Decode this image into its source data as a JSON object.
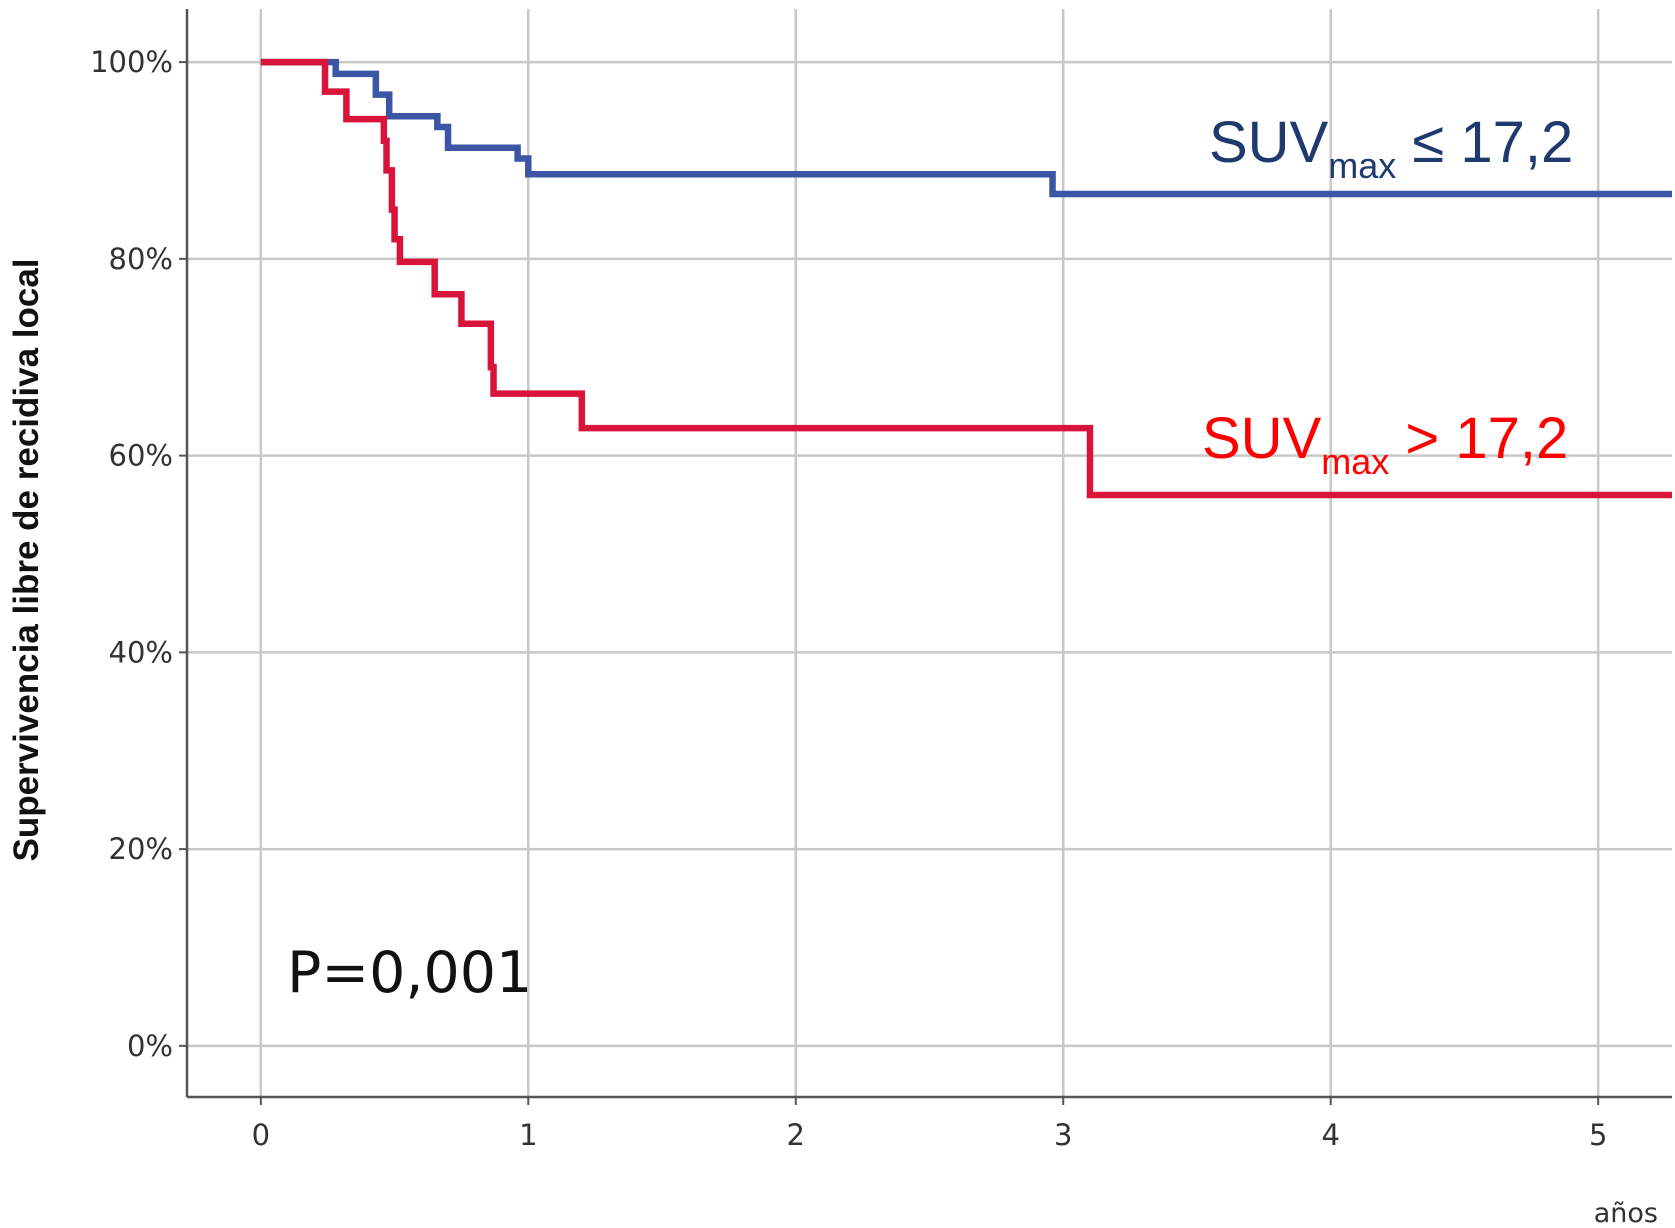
{
  "chart_data": {
    "type": "line",
    "step": "post",
    "ylabel": "Supervivencia libre de recidiva local",
    "xlabel": "años",
    "annotation": "P=0,001",
    "xlim": [
      -0.276,
      5.276
    ],
    "ylim": [
      -5.2,
      105.4
    ],
    "xticks": [
      0,
      1,
      2,
      3,
      4,
      5
    ],
    "yticks": [
      {
        "value": 0,
        "label": "0%"
      },
      {
        "value": 20,
        "label": "20%"
      },
      {
        "value": 40,
        "label": "40%"
      },
      {
        "value": 60,
        "label": "60%"
      },
      {
        "value": 80,
        "label": "80%"
      },
      {
        "value": 100,
        "label": "100%"
      }
    ],
    "grid": true,
    "series": [
      {
        "name_parts": [
          "SUV",
          "max",
          " ≤ 17,2"
        ],
        "color": "#3a56a5",
        "label_color": "#1f3a6e",
        "x": [
          0,
          0.28,
          0.43,
          0.48,
          0.66,
          0.7,
          0.96,
          1.0,
          2.96,
          5.276
        ],
        "values": [
          100,
          98.8,
          96.7,
          94.5,
          93.4,
          91.3,
          90.2,
          88.6,
          86.6,
          86.6
        ]
      },
      {
        "name_parts": [
          "SUV",
          "max",
          " > 17,2"
        ],
        "color": "#d9143a",
        "label_color": "#ff0000",
        "x": [
          0,
          0.24,
          0.32,
          0.46,
          0.47,
          0.49,
          0.5,
          0.52,
          0.65,
          0.75,
          0.86,
          0.87,
          1.2,
          3.1,
          5.276
        ],
        "values": [
          100,
          97,
          94.2,
          92,
          89,
          85,
          82,
          79.7,
          76.4,
          73.4,
          69,
          66.3,
          62.8,
          56.0,
          56.0
        ]
      }
    ]
  }
}
